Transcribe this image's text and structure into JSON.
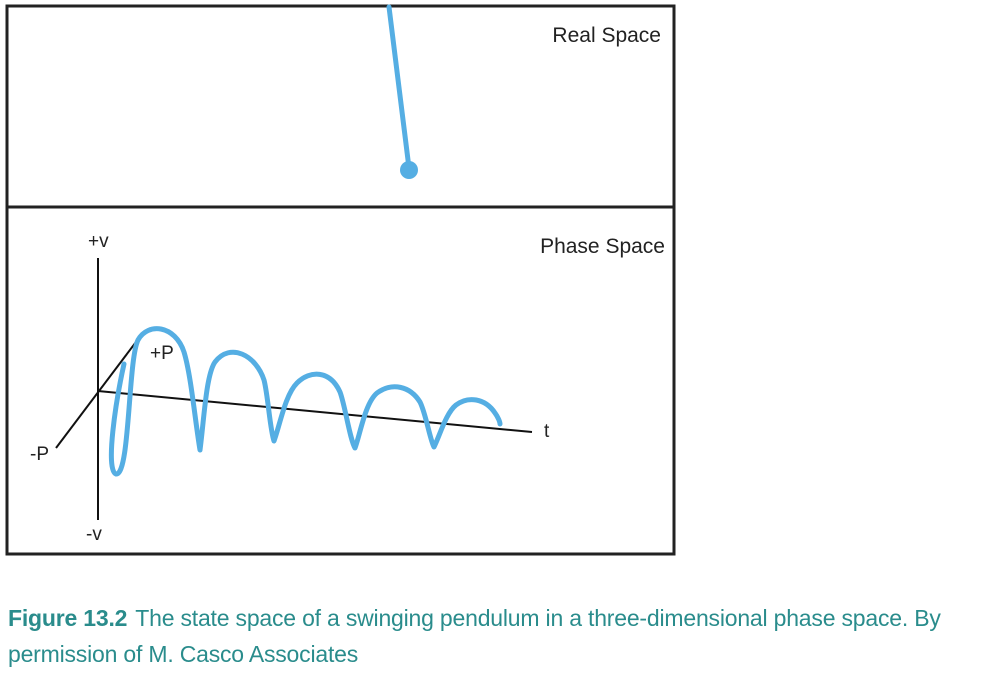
{
  "colors": {
    "frame": "#222222",
    "curve": "#55aee3",
    "caption": "#2a8c8c"
  },
  "panels": {
    "real": {
      "label": "Real Space"
    },
    "phase": {
      "label": "Phase Space"
    }
  },
  "axes": {
    "plus_v": "+v",
    "minus_v": "-v",
    "plus_p": "+P",
    "minus_p": "-P",
    "t": "t"
  },
  "caption": {
    "figure_number": "Figure 13.2",
    "text": "The state space of a swinging pendulum in a three-dimensional phase space. By permission of M. Casco Associates"
  }
}
